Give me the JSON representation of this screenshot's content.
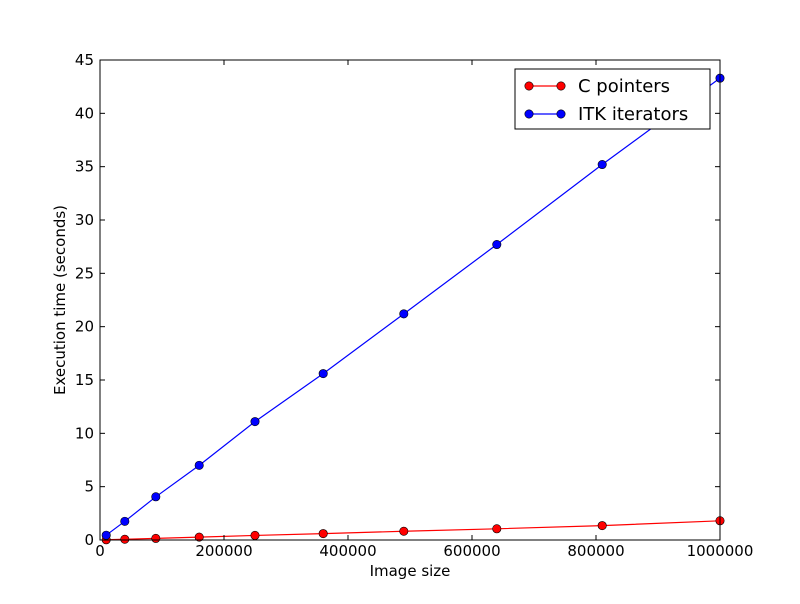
{
  "chart_data": {
    "type": "line",
    "title": "",
    "xlabel": "Image size",
    "ylabel": "Execution time (seconds)",
    "xlim": [
      0,
      1000000
    ],
    "ylim": [
      0,
      45
    ],
    "x_ticks": [
      0,
      200000,
      400000,
      600000,
      800000,
      1000000
    ],
    "y_ticks": [
      0,
      5,
      10,
      15,
      20,
      25,
      30,
      35,
      40,
      45
    ],
    "grid": false,
    "legend_position": "top-right",
    "x": [
      10000,
      40000,
      90000,
      160000,
      250000,
      360000,
      490000,
      640000,
      810000,
      1000000
    ],
    "series": [
      {
        "name": "C pointers",
        "color": "#ff0000",
        "marker": "circle",
        "values": [
          0.02,
          0.07,
          0.15,
          0.27,
          0.43,
          0.6,
          0.82,
          1.05,
          1.35,
          1.8
        ]
      },
      {
        "name": "ITK iterators",
        "color": "#0000ff",
        "marker": "circle",
        "values": [
          0.45,
          1.75,
          4.05,
          7.0,
          11.1,
          15.6,
          21.2,
          27.7,
          35.2,
          43.3
        ]
      }
    ]
  }
}
